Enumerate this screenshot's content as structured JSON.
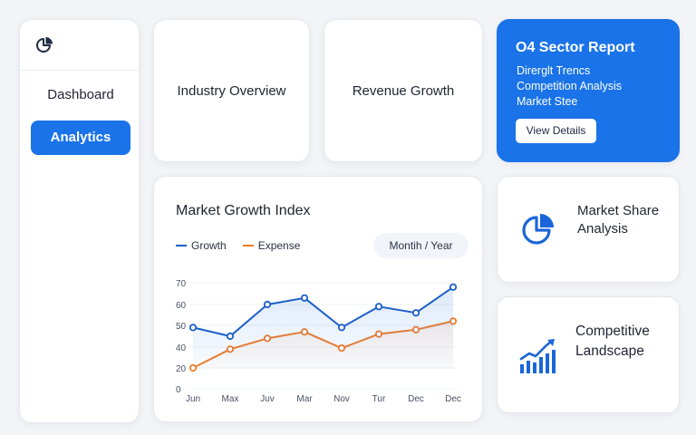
{
  "sidebar": {
    "logo_icon": "pie-chart-icon",
    "items": [
      {
        "label": "Dashboard",
        "active": false
      },
      {
        "label": "Analytics",
        "active": true
      }
    ]
  },
  "top_cards": {
    "industry": "Industry Overview",
    "revenue": "Revenue Growth"
  },
  "report": {
    "title": "O4 Sector Report",
    "items": [
      "Direrglt Trencs",
      "Competition Analysis",
      "Market Stee"
    ],
    "button": "View Details"
  },
  "chart": {
    "title": "Market Growth Index",
    "period_toggle": "Montih / Year"
  },
  "chart_data": {
    "type": "line",
    "categories": [
      "Jun",
      "Max",
      "Juv",
      "Mar",
      "Nov",
      "Tur",
      "Dec",
      "Dec"
    ],
    "y_ticks": [
      0,
      20,
      40,
      50,
      60,
      70
    ],
    "series": [
      {
        "name": "Growth",
        "color": "#1b5fc8",
        "values": [
          49,
          45,
          60,
          63,
          49,
          59,
          56,
          68
        ]
      },
      {
        "name": "Expense",
        "color": "#f07c2a",
        "values": [
          20,
          38,
          44,
          47,
          39,
          46,
          48,
          52
        ]
      }
    ],
    "grid": true,
    "legend": "top-left"
  },
  "features": {
    "share": {
      "label": "Market Share Analysis",
      "icon": "pie-chart-icon"
    },
    "landscape": {
      "label": "Competitive Landscape",
      "icon": "bar-chart-trend-icon"
    }
  },
  "colors": {
    "accent": "#1a73e8",
    "growth_line": "#1b5fc8",
    "expense_line": "#f07c2a"
  }
}
